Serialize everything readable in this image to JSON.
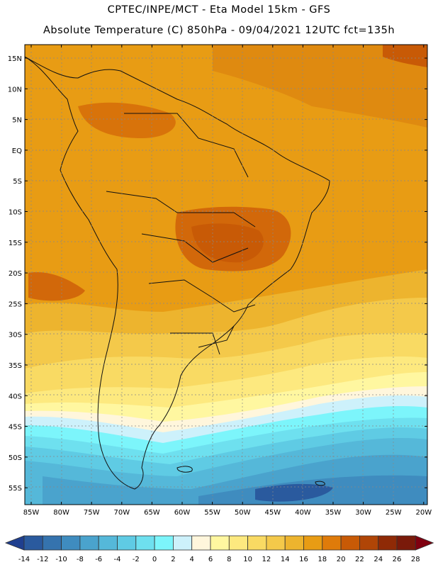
{
  "header": {
    "line1": "CPTEC/INPE/MCT -  Eta Model 15km - GFS",
    "line2": "Absolute Temperature (C) 850hPa - 09/04/2021 12UTC fct=135h"
  },
  "lat_labels": [
    "15N",
    "10N",
    "5N",
    "EQ",
    "5S",
    "10S",
    "15S",
    "20S",
    "25S",
    "30S",
    "35S",
    "40S",
    "45S",
    "50S",
    "55S"
  ],
  "lon_labels": [
    "85W",
    "80W",
    "75W",
    "70W",
    "65W",
    "60W",
    "55W",
    "50W",
    "45W",
    "40W",
    "35W",
    "30W",
    "25W",
    "20W"
  ],
  "colorbar": {
    "unit": "C",
    "ticks": [
      "-14",
      "-12",
      "-10",
      "-8",
      "-6",
      "-4",
      "-2",
      "0",
      "2",
      "4",
      "6",
      "8",
      "10",
      "12",
      "14",
      "16",
      "18",
      "20",
      "22",
      "24",
      "26",
      "28"
    ],
    "colors": [
      "#1f3f8f",
      "#2a5a9e",
      "#3573ae",
      "#3f8cbf",
      "#4aa3cd",
      "#55b8d9",
      "#5fcbe4",
      "#6ee0ef",
      "#7cf5fb",
      "#cdf1fb",
      "#fff6dc",
      "#fff7a0",
      "#fde97f",
      "#f9da63",
      "#f4c94a",
      "#edb42e",
      "#e89c14",
      "#df7b0a",
      "#c85a06",
      "#b04506",
      "#8f2a06",
      "#7a1a0a",
      "#800010"
    ]
  }
}
